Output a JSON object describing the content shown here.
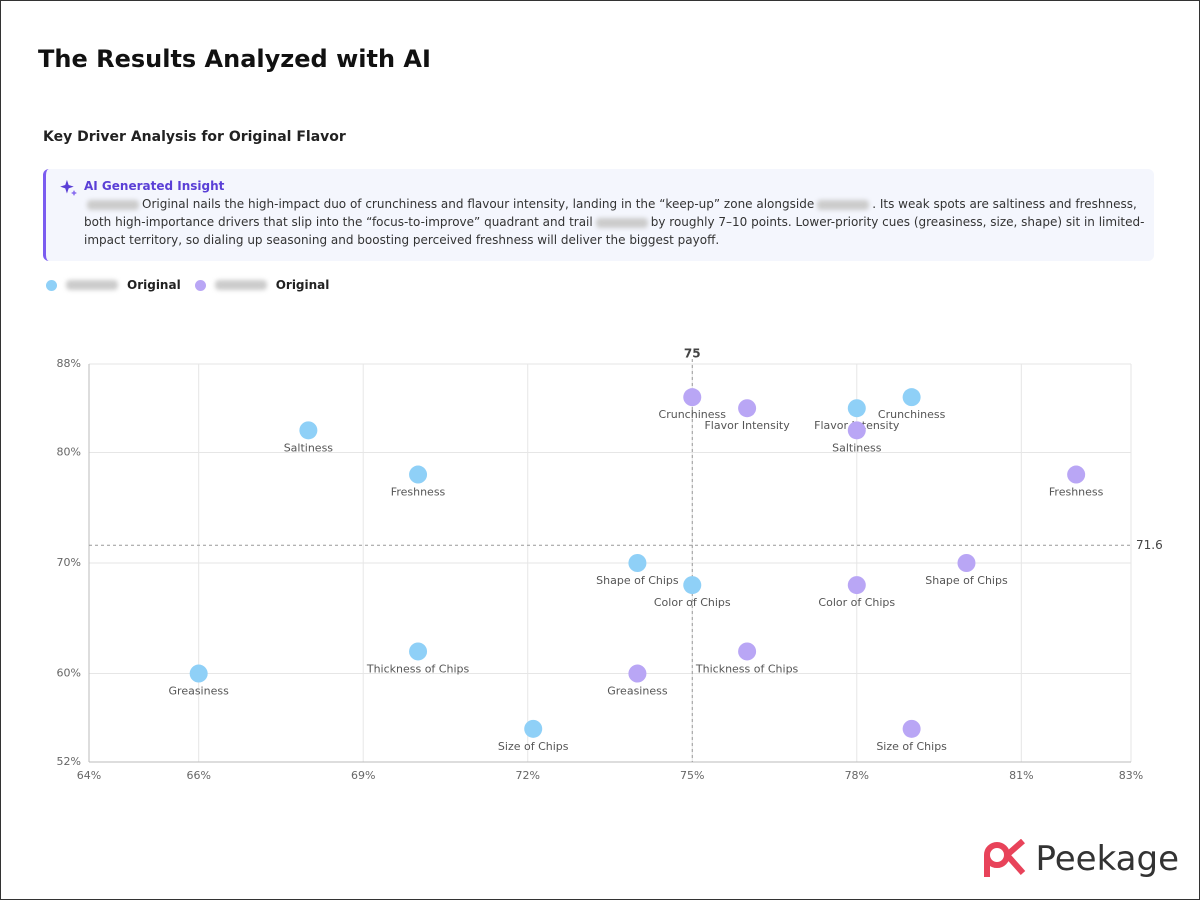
{
  "title": "The Results Analyzed with AI",
  "card": {
    "heading": "Key Driver Analysis for Original Flavor",
    "insight": {
      "label": "AI Generated Insight",
      "segments": [
        "Original nails the high-impact duo of crunchiness and flavour intensity, landing in the “keep-up” zone alongside",
        ". Its weak spots are saltiness and freshness, both high-importance drivers that slip into the “focus-to-improve” quadrant and trail",
        "by roughly 7–10 points. Lower-priority cues (greasiness, size, shape) sit in limited-impact territory, so dialing up seasoning and boosting perceived freshness will deliver the biggest payoff."
      ]
    }
  },
  "chart_data": {
    "type": "scatter",
    "series": [
      {
        "name": "Original",
        "color": "#8fd0f7",
        "point_labels": [
          "Crunchiness",
          "Flavor Intensity",
          "Saltiness",
          "Freshness",
          "Shape of Chips",
          "Color of Chips",
          "Thickness of Chips",
          "Greasiness",
          "Size of Chips"
        ],
        "x": [
          79,
          78,
          68,
          70,
          74,
          75,
          70,
          66,
          72.1
        ],
        "values": [
          85,
          84,
          82,
          78,
          70,
          68,
          62,
          60,
          55
        ]
      },
      {
        "name": "Original",
        "color": "#b9a6f5",
        "point_labels": [
          "Crunchiness",
          "Flavor Intensity",
          "Saltiness",
          "Freshness",
          "Shape of Chips",
          "Color of Chips",
          "Thickness of Chips",
          "Greasiness",
          "Size of Chips"
        ],
        "x": [
          75,
          76,
          78,
          82,
          80,
          78,
          76,
          74,
          79
        ],
        "values": [
          85,
          84,
          82,
          78,
          70,
          68,
          62,
          60,
          55
        ]
      }
    ],
    "xlim": [
      64,
      83
    ],
    "xticks": [
      {
        "value": 64,
        "label": "64%"
      },
      {
        "value": 66,
        "label": "66%"
      },
      {
        "value": 69,
        "label": "69%"
      },
      {
        "value": 72,
        "label": "72%"
      },
      {
        "value": 75,
        "label": "75%"
      },
      {
        "value": 78,
        "label": "78%"
      },
      {
        "value": 81,
        "label": "81%"
      },
      {
        "value": 83,
        "label": "83%"
      }
    ],
    "ylim": [
      52,
      88
    ],
    "yticks": [
      {
        "value": 52,
        "label": "52%"
      },
      {
        "value": 60,
        "label": "60%"
      },
      {
        "value": 70,
        "label": "70%"
      },
      {
        "value": 80,
        "label": "80%"
      },
      {
        "value": 88,
        "label": "88%"
      }
    ],
    "reference_lines": {
      "x": 75,
      "y": 71.6
    },
    "grid": true
  },
  "logo": "Peekage"
}
